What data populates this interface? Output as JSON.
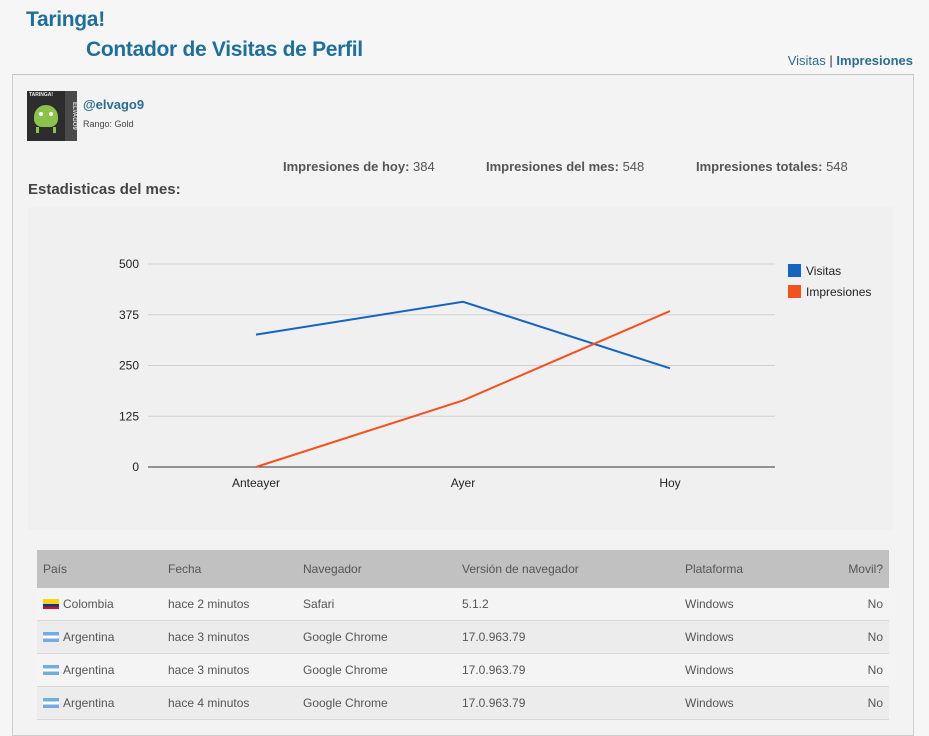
{
  "header": {
    "logo": "Taringa!",
    "subtitle": "Contador de Visitas de Perfil",
    "nav": [
      {
        "label": "Visitas",
        "active": false
      },
      {
        "label": "Impresiones",
        "active": true
      }
    ],
    "nav_separator": "|"
  },
  "profile": {
    "avatar_tag": "TARINGA!",
    "avatar_side": "ELVAGO9",
    "username": "@elvago9",
    "rank": "Rango: Gold"
  },
  "stats": [
    {
      "label": "Impresiones de hoy:",
      "value": "384"
    },
    {
      "label": "Impresiones del mes:",
      "value": "548"
    },
    {
      "label": "Impresiones totales:",
      "value": "548"
    }
  ],
  "section_title": "Estadisticas del mes:",
  "chart_data": {
    "type": "line",
    "categories": [
      "Anteayer",
      "Ayer",
      "Hoy"
    ],
    "series": [
      {
        "name": "Visitas",
        "values": [
          326,
          407,
          243
        ],
        "color": "#1565c0"
      },
      {
        "name": "Impresiones",
        "values": [
          0,
          164,
          384
        ],
        "color": "#f4511e"
      }
    ],
    "yticks": [
      0,
      125,
      250,
      375,
      500
    ],
    "ylim": [
      0,
      500
    ],
    "legend_position": "right",
    "grid": true
  },
  "table": {
    "columns": [
      "País",
      "Fecha",
      "Navegador",
      "Versión de navegador",
      "Plataforma",
      "Movil?"
    ],
    "rows": [
      {
        "flag": "co",
        "country": "Colombia",
        "date": "hace 2 minutos",
        "browser": "Safari",
        "version": "5.1.2",
        "platform": "Windows",
        "mobile": "No"
      },
      {
        "flag": "ar",
        "country": "Argentina",
        "date": "hace 3 minutos",
        "browser": "Google Chrome",
        "version": "17.0.963.79",
        "platform": "Windows",
        "mobile": "No"
      },
      {
        "flag": "ar",
        "country": "Argentina",
        "date": "hace 3 minutos",
        "browser": "Google Chrome",
        "version": "17.0.963.79",
        "platform": "Windows",
        "mobile": "No"
      },
      {
        "flag": "ar",
        "country": "Argentina",
        "date": "hace 4 minutos",
        "browser": "Google Chrome",
        "version": "17.0.963.79",
        "platform": "Windows",
        "mobile": "No"
      }
    ]
  }
}
